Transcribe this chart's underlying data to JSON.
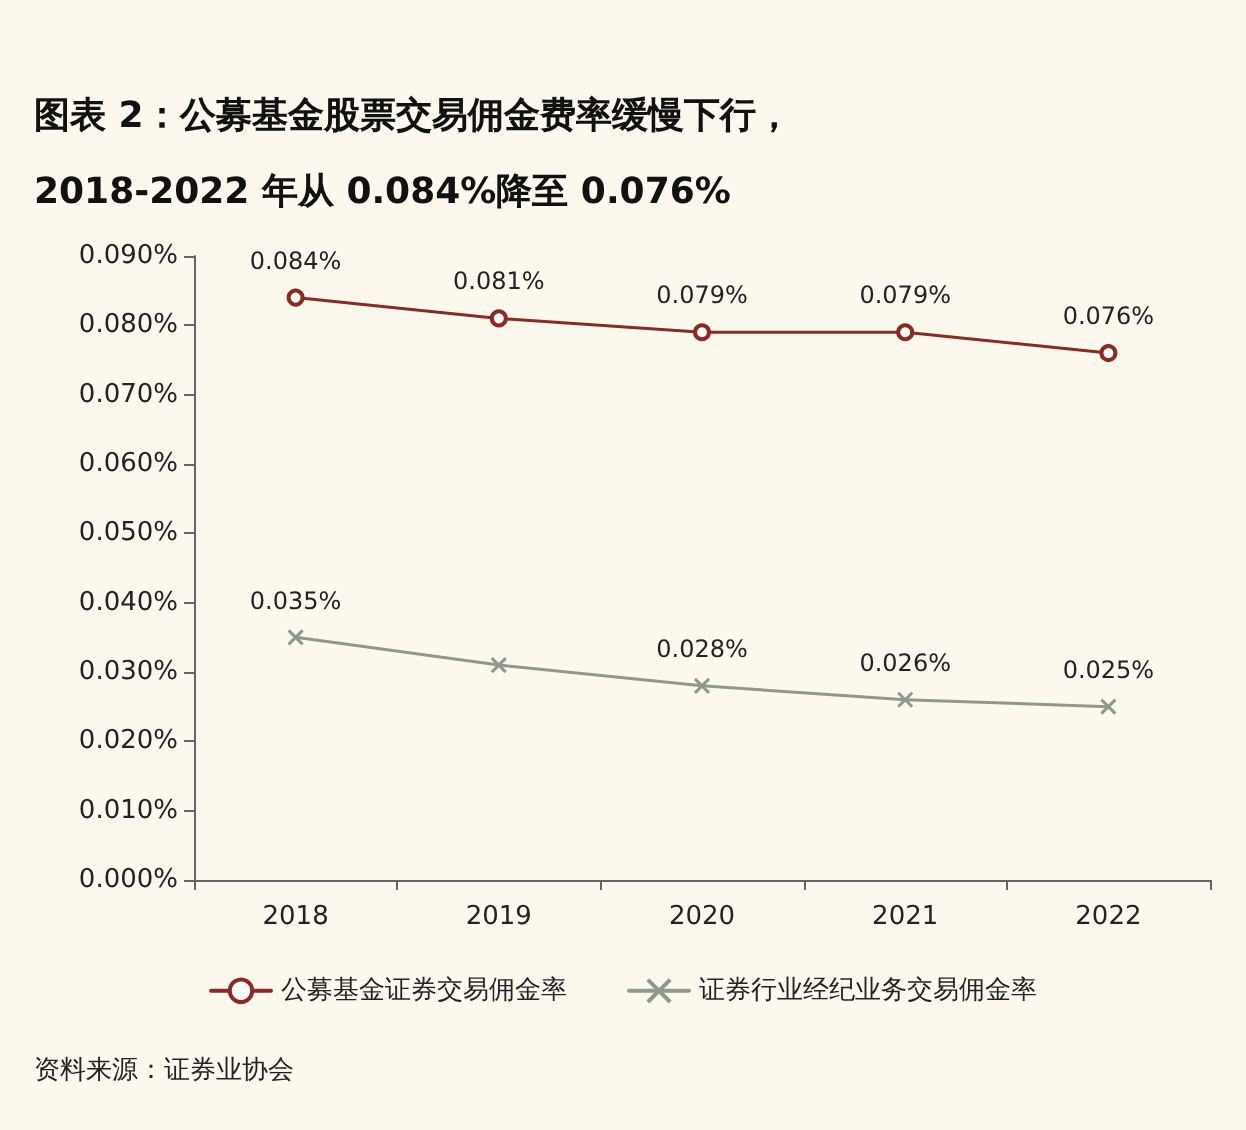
{
  "chart_data": {
    "type": "line",
    "title": "图表 2：公募基金股票交易佣金费率缓慢下行，\n2018-2022 年从 0.084%降至 0.076%",
    "categories": [
      "2018",
      "2019",
      "2020",
      "2021",
      "2022"
    ],
    "series": [
      {
        "name": "公募基金证券交易佣金率",
        "color": "#8b2a22",
        "marker": "circle",
        "values": [
          0.084,
          0.081,
          0.079,
          0.079,
          0.076
        ],
        "value_labels": [
          "0.084%",
          "0.081%",
          "0.079%",
          "0.079%",
          "0.076%"
        ]
      },
      {
        "name": "证券行业经纪业务交易佣金率",
        "color": "#8d9a8b",
        "marker": "cross",
        "values": [
          0.035,
          0.031,
          0.028,
          0.026,
          0.025
        ],
        "value_labels": [
          "0.035%",
          null,
          "0.028%",
          "0.026%",
          "0.025%"
        ]
      }
    ],
    "ylim": [
      0,
      0.09
    ],
    "yticks": [
      {
        "value": 0,
        "label": "0.000%"
      },
      {
        "value": 0.01,
        "label": "0.010%"
      },
      {
        "value": 0.02,
        "label": "0.020%"
      },
      {
        "value": 0.03,
        "label": "0.030%"
      },
      {
        "value": 0.04,
        "label": "0.040%"
      },
      {
        "value": 0.05,
        "label": "0.050%"
      },
      {
        "value": 0.06,
        "label": "0.060%"
      },
      {
        "value": 0.07,
        "label": "0.070%"
      },
      {
        "value": 0.08,
        "label": "0.080%"
      },
      {
        "value": 0.09,
        "label": "0.090%"
      }
    ],
    "grid": false,
    "legend": "bottom",
    "line_style": "solid",
    "annotations": [
      "资料来源：证券业协会"
    ]
  }
}
